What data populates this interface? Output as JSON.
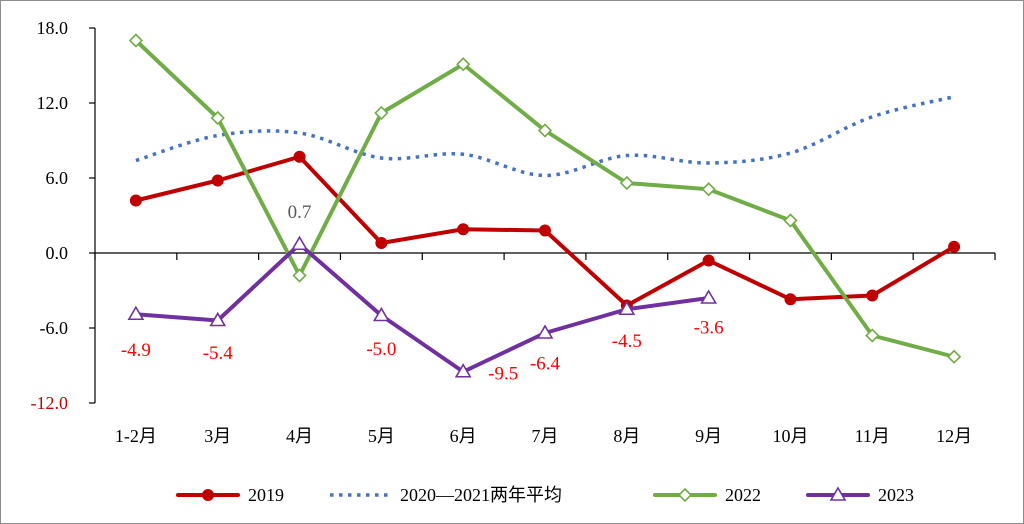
{
  "chart_data": {
    "type": "line",
    "title": "",
    "xlabel": "",
    "ylabel": "",
    "categories": [
      "1-2月",
      "3月",
      "4月",
      "5月",
      "6月",
      "7月",
      "8月",
      "9月",
      "10月",
      "11月",
      "12月"
    ],
    "ylim": [
      -12,
      18
    ],
    "yticks": [
      18,
      12,
      6,
      0,
      -6,
      -12
    ],
    "ytick_labels": [
      "18.0",
      "12.0",
      "6.0",
      "0.0",
      "-6.0",
      "-12.0"
    ],
    "ytick_colors": [
      "#000000",
      "#000000",
      "#000000",
      "#000000",
      "#000000",
      "#C00000"
    ],
    "grid": false,
    "legend_position": "bottom",
    "series": [
      {
        "name": "2019",
        "color": "#C00000",
        "line": "solid",
        "smooth": false,
        "marker": "circle",
        "values": [
          4.2,
          5.8,
          7.7,
          0.8,
          1.9,
          1.8,
          -4.2,
          -0.6,
          -3.7,
          -3.4,
          0.5
        ]
      },
      {
        "name": "2020—2021两年平均",
        "color": "#4472C4",
        "line": "dotted",
        "smooth": true,
        "marker": "none",
        "values": [
          7.4,
          9.4,
          9.6,
          7.6,
          7.9,
          6.2,
          7.8,
          7.2,
          8.0,
          10.9,
          12.5
        ]
      },
      {
        "name": "2022",
        "color": "#70AD47",
        "line": "solid",
        "smooth": false,
        "marker": "diamond",
        "values": [
          17.0,
          10.8,
          -1.8,
          11.2,
          15.1,
          9.8,
          5.6,
          5.1,
          2.6,
          -6.6,
          -8.3
        ]
      },
      {
        "name": "2023",
        "color": "#7030A0",
        "line": "solid",
        "smooth": false,
        "marker": "triangle",
        "values": [
          -4.9,
          -5.4,
          0.7,
          -5.0,
          -9.5,
          -6.4,
          -4.5,
          -3.6,
          null,
          null,
          null
        ],
        "data_labels": [
          "-4.9",
          "-5.4",
          "0.7",
          "-5.0",
          "-9.5",
          "-6.4",
          "-4.5",
          "-3.6"
        ],
        "data_label_colors": [
          "#FF0000",
          "#FF0000",
          "#595959",
          "#FF0000",
          "#FF0000",
          "#FF0000",
          "#FF0000",
          "#FF0000"
        ]
      }
    ]
  }
}
